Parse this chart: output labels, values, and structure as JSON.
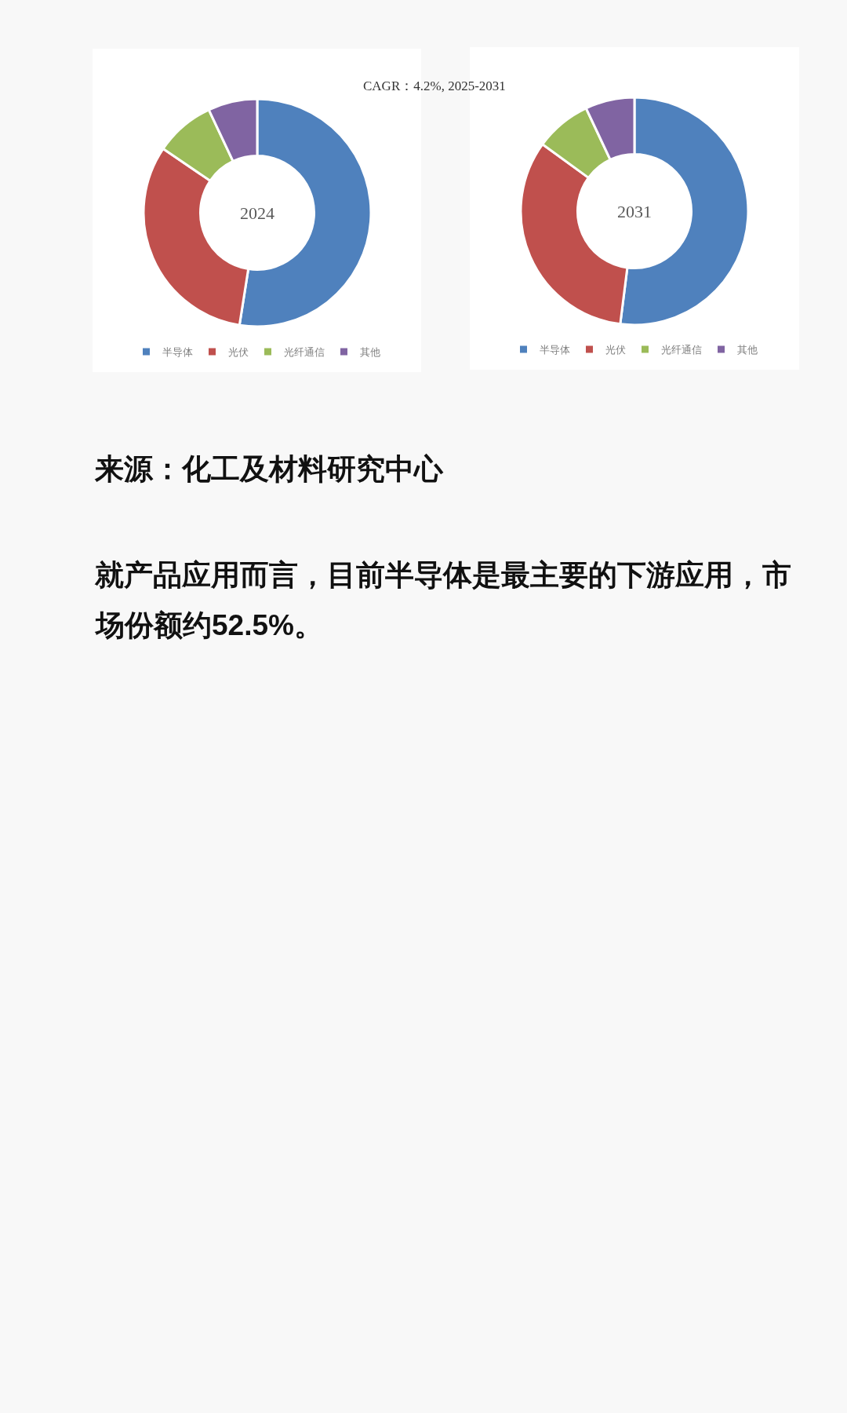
{
  "chart_data": [
    {
      "type": "donut",
      "title": "2024",
      "categories": [
        "半导体",
        "光伏",
        "光纤通信",
        "其他"
      ],
      "values": [
        52.5,
        32,
        8.5,
        7
      ],
      "colors": [
        "#4f81bd",
        "#c0504d",
        "#9bbb59",
        "#8064a2"
      ],
      "legend": "bottom",
      "annotations": [
        "CAGR：4.2%, 2025-2031"
      ]
    },
    {
      "type": "donut",
      "title": "2031",
      "categories": [
        "半导体",
        "光伏",
        "光纤通信",
        "其他"
      ],
      "values": [
        52,
        33,
        8,
        7
      ],
      "colors": [
        "#4f81bd",
        "#c0504d",
        "#9bbb59",
        "#8064a2"
      ],
      "legend": "bottom",
      "annotations": [
        "来源：化工及材料研究中心",
        "就产品应用而言，目前半导体是最主要的下游应用，市场份额约52.5%。"
      ]
    }
  ]
}
